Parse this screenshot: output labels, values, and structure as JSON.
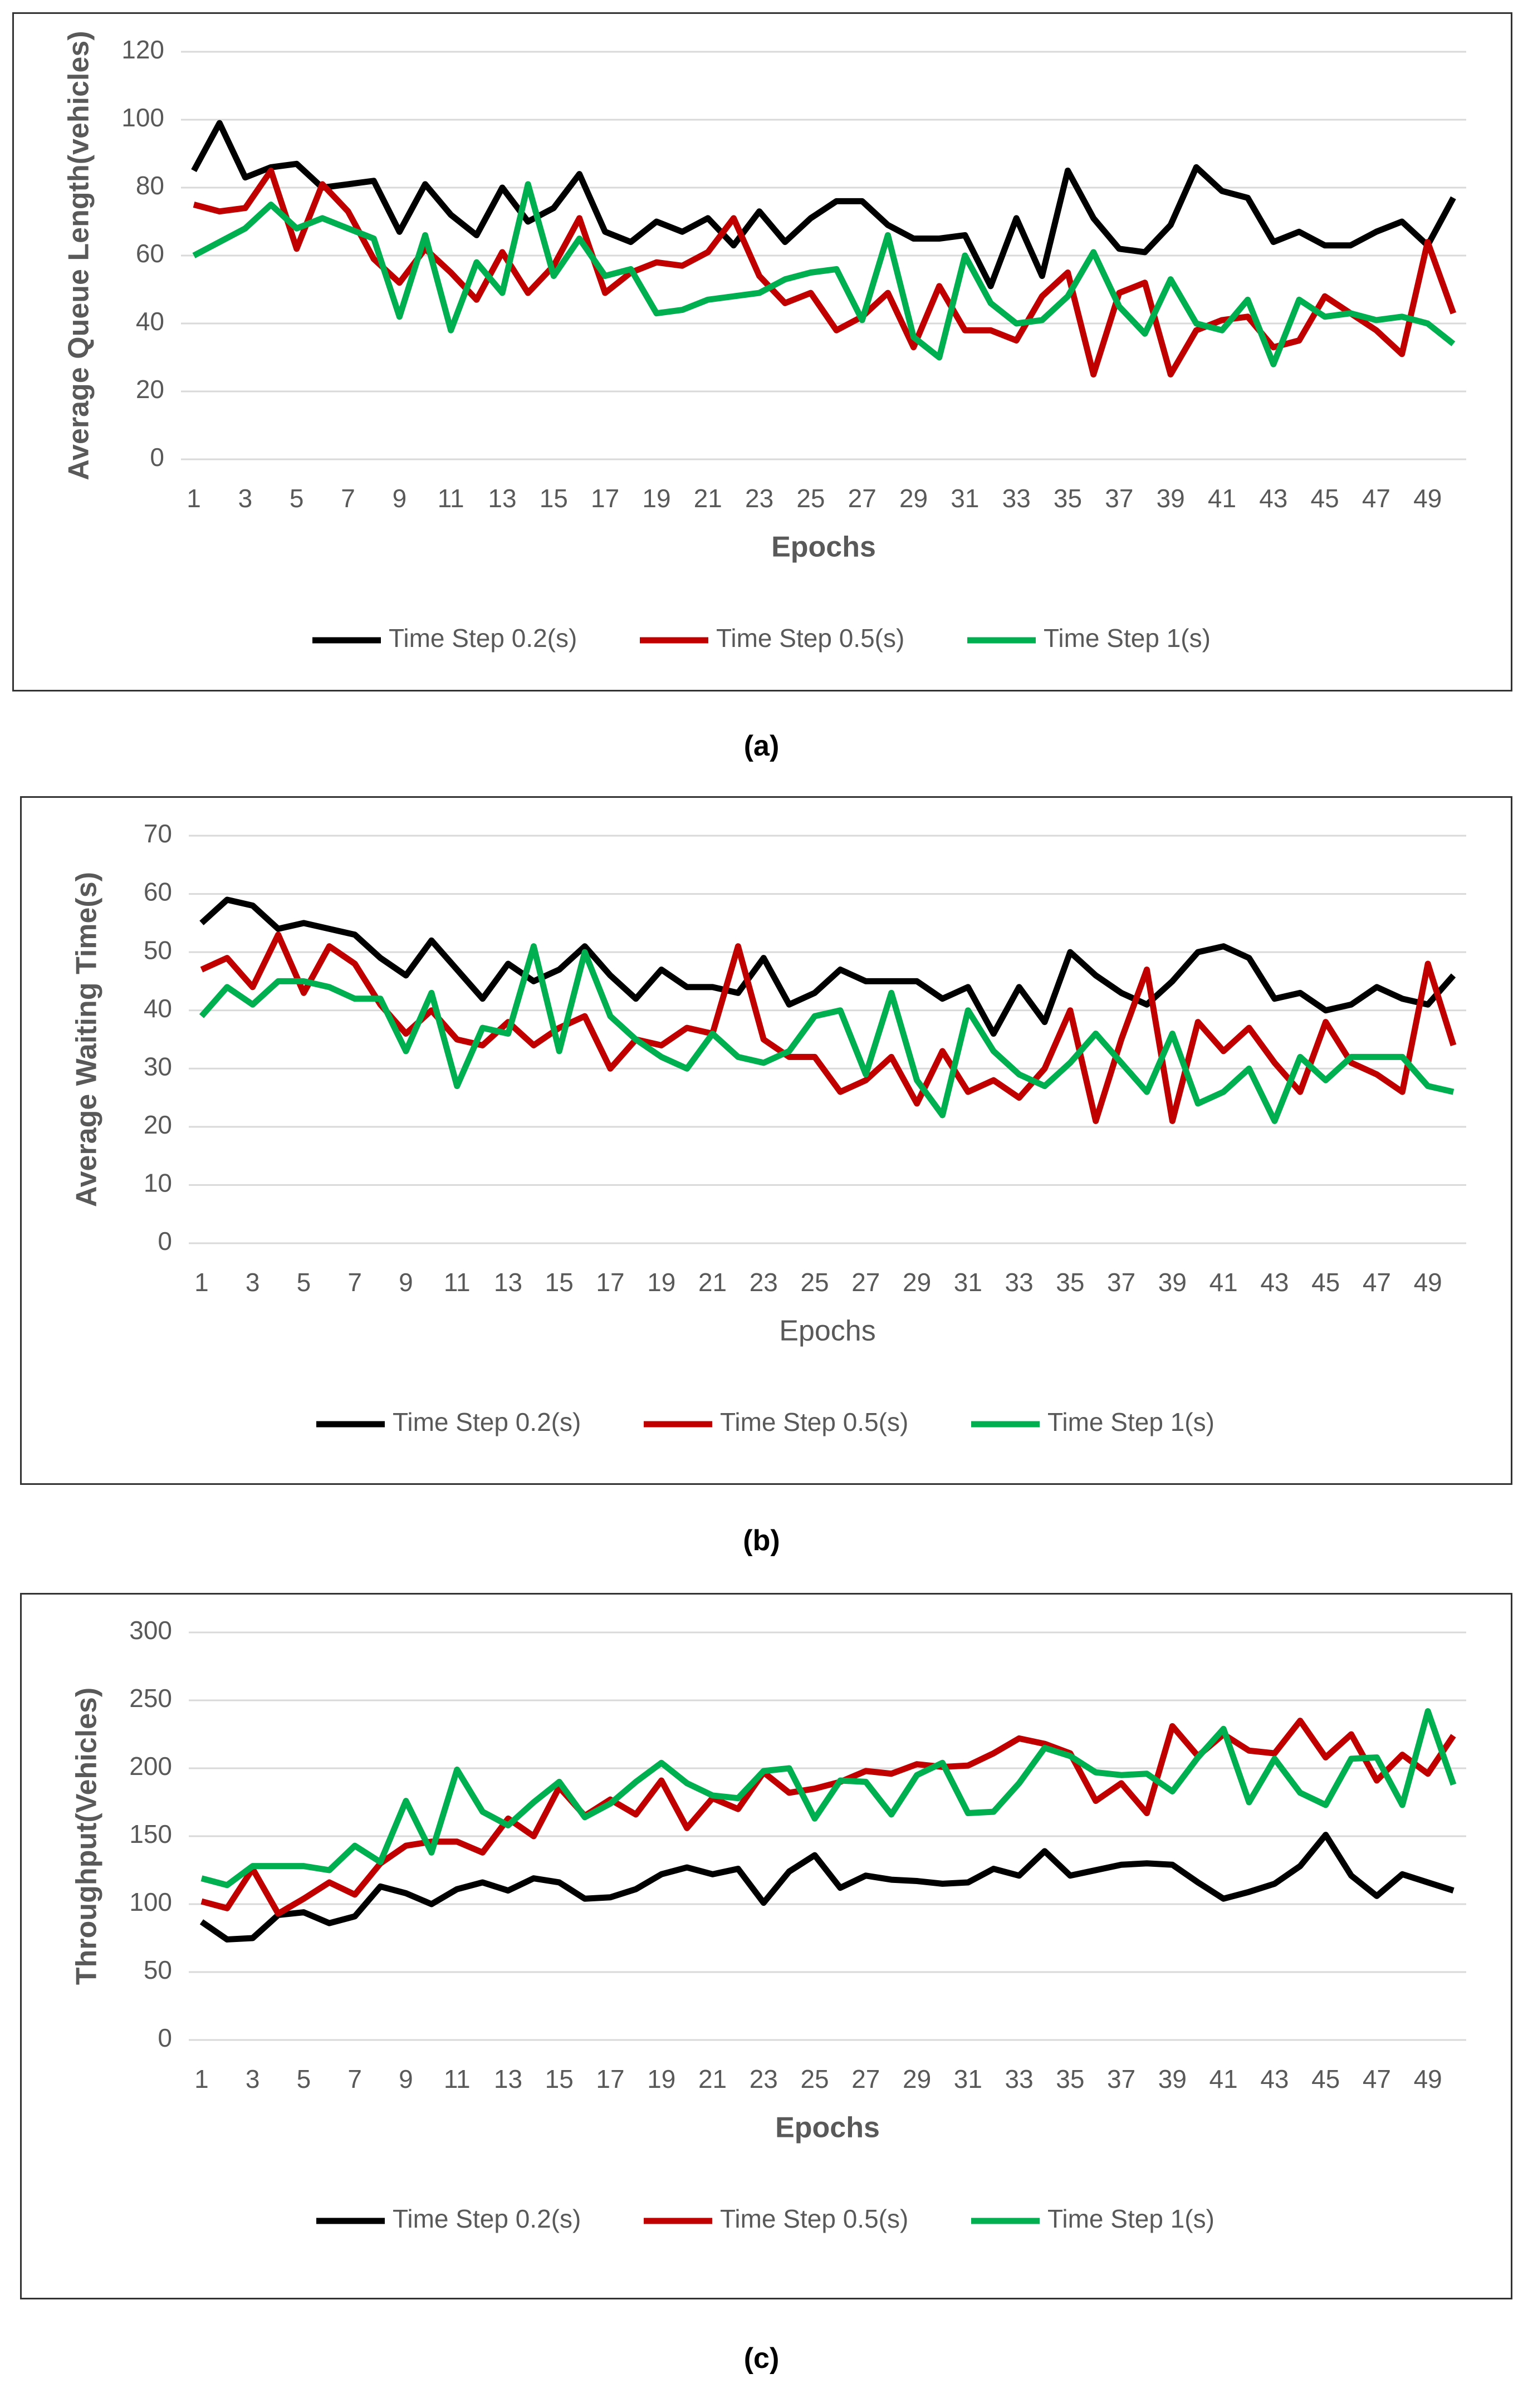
{
  "chart_data": [
    {
      "type": "line",
      "caption": "(a)",
      "x_label": "Epochs",
      "y_label": "Average Queue Length(vehicles)",
      "categories": [
        1,
        null,
        3,
        null,
        5,
        null,
        7,
        null,
        9,
        null,
        11,
        null,
        13,
        null,
        15,
        null,
        17,
        null,
        19,
        null,
        21,
        null,
        23,
        null,
        25,
        null,
        27,
        null,
        29,
        null,
        31,
        null,
        33,
        null,
        35,
        null,
        37,
        null,
        39,
        null,
        41,
        null,
        43,
        null,
        45,
        null,
        47,
        null,
        49,
        null
      ],
      "ylim": [
        0,
        120
      ],
      "yticks": [
        0,
        20,
        40,
        60,
        80,
        100,
        120
      ],
      "grid": true,
      "legend": "bottom",
      "series": [
        {
          "name": "Time Step 0.2(s)",
          "color": "#000000",
          "values": [
            85,
            99,
            83,
            86,
            87,
            80,
            81,
            82,
            67,
            81,
            72,
            66,
            80,
            70,
            74,
            84,
            67,
            64,
            70,
            67,
            71,
            63,
            73,
            64,
            71,
            76,
            76,
            69,
            65,
            65,
            66,
            51,
            71,
            54,
            85,
            71,
            62,
            61,
            69,
            86,
            79,
            77,
            64,
            67,
            63,
            63,
            67,
            70,
            63,
            77
          ]
        },
        {
          "name": "Time Step 0.5(s)",
          "color": "#c00000",
          "values": [
            75,
            73,
            74,
            85,
            62,
            81,
            73,
            59,
            52,
            62,
            55,
            47,
            61,
            49,
            57,
            71,
            49,
            55,
            58,
            57,
            61,
            71,
            54,
            46,
            49,
            38,
            42,
            49,
            33,
            51,
            38,
            38,
            35,
            48,
            55,
            25,
            49,
            52,
            25,
            38,
            41,
            42,
            33,
            35,
            48,
            43,
            38,
            31,
            64,
            43
          ]
        },
        {
          "name": "Time Step 1(s)",
          "color": "#00b050",
          "values": [
            60,
            64,
            68,
            75,
            68,
            71,
            68,
            65,
            42,
            66,
            38,
            58,
            49,
            81,
            54,
            65,
            54,
            56,
            43,
            44,
            47,
            48,
            49,
            53,
            55,
            56,
            41,
            66,
            36,
            30,
            60,
            46,
            40,
            41,
            48,
            61,
            45,
            37,
            53,
            40,
            38,
            47,
            28,
            47,
            42,
            43,
            41,
            42,
            40,
            34
          ]
        }
      ]
    },
    {
      "type": "line",
      "caption": "(b)",
      "x_label": "Epochs",
      "y_label": "Average Waiting Time(s)",
      "categories": [
        1,
        null,
        3,
        null,
        5,
        null,
        7,
        null,
        9,
        null,
        11,
        null,
        13,
        null,
        15,
        null,
        17,
        null,
        19,
        null,
        21,
        null,
        23,
        null,
        25,
        null,
        27,
        null,
        29,
        null,
        31,
        null,
        33,
        null,
        35,
        null,
        37,
        null,
        39,
        null,
        41,
        null,
        43,
        null,
        45,
        null,
        47,
        null,
        49,
        null
      ],
      "ylim": [
        0,
        70
      ],
      "yticks": [
        0,
        10,
        20,
        30,
        40,
        50,
        60,
        70
      ],
      "grid": true,
      "legend": "bottom",
      "series": [
        {
          "name": "Time Step 0.2(s)",
          "color": "#000000",
          "values": [
            55,
            59,
            58,
            54,
            55,
            54,
            53,
            49,
            46,
            52,
            47,
            42,
            48,
            45,
            47,
            51,
            46,
            42,
            47,
            44,
            44,
            43,
            49,
            41,
            43,
            47,
            45,
            45,
            45,
            42,
            44,
            36,
            44,
            38,
            50,
            46,
            43,
            41,
            45,
            50,
            51,
            49,
            42,
            43,
            40,
            41,
            44,
            42,
            41,
            46
          ]
        },
        {
          "name": "Time Step 0.5(s)",
          "color": "#c00000",
          "values": [
            47,
            49,
            44,
            53,
            43,
            51,
            48,
            41,
            36,
            40,
            35,
            34,
            38,
            34,
            37,
            39,
            30,
            35,
            34,
            37,
            36,
            51,
            35,
            32,
            32,
            26,
            28,
            32,
            24,
            33,
            26,
            28,
            25,
            30,
            40,
            21,
            35,
            47,
            21,
            38,
            33,
            37,
            31,
            26,
            38,
            31,
            29,
            26,
            48,
            34
          ]
        },
        {
          "name": "Time Step 1(s)",
          "color": "#00b050",
          "values": [
            39,
            44,
            41,
            45,
            45,
            44,
            42,
            42,
            33,
            43,
            27,
            37,
            36,
            51,
            33,
            50,
            39,
            35,
            32,
            30,
            36,
            32,
            31,
            33,
            39,
            40,
            29,
            43,
            28,
            22,
            40,
            33,
            29,
            27,
            31,
            36,
            31,
            26,
            36,
            24,
            26,
            30,
            21,
            32,
            28,
            32,
            32,
            32,
            27,
            26
          ]
        }
      ]
    },
    {
      "type": "line",
      "caption": "(c)",
      "x_label": "Epochs",
      "y_label": "Throughput(Vehicles)",
      "categories": [
        1,
        null,
        3,
        null,
        5,
        null,
        7,
        null,
        9,
        null,
        11,
        null,
        13,
        null,
        15,
        null,
        17,
        null,
        19,
        null,
        21,
        null,
        23,
        null,
        25,
        null,
        27,
        null,
        29,
        null,
        31,
        null,
        33,
        null,
        35,
        null,
        37,
        null,
        39,
        null,
        41,
        null,
        43,
        null,
        45,
        null,
        47,
        null,
        49,
        null
      ],
      "ylim": [
        0,
        300
      ],
      "yticks": [
        0,
        50,
        100,
        150,
        200,
        250,
        300
      ],
      "grid": true,
      "legend": "bottom",
      "series": [
        {
          "name": "Time Step 0.2(s)",
          "color": "#000000",
          "values": [
            87,
            74,
            75,
            92,
            94,
            86,
            91,
            113,
            108,
            100,
            111,
            116,
            110,
            119,
            116,
            104,
            105,
            111,
            122,
            127,
            122,
            126,
            101,
            124,
            136,
            112,
            121,
            118,
            117,
            115,
            116,
            126,
            121,
            139,
            121,
            125,
            129,
            130,
            129,
            116,
            104,
            109,
            115,
            128,
            151,
            121,
            106,
            122,
            116,
            110
          ]
        },
        {
          "name": "Time Step 0.5(s)",
          "color": "#c00000",
          "values": [
            102,
            97,
            126,
            93,
            104,
            116,
            107,
            130,
            143,
            146,
            146,
            138,
            163,
            150,
            186,
            165,
            177,
            166,
            191,
            156,
            178,
            170,
            197,
            182,
            185,
            190,
            198,
            196,
            203,
            201,
            202,
            211,
            222,
            218,
            211,
            176,
            189,
            167,
            231,
            209,
            225,
            213,
            211,
            235,
            208,
            225,
            191,
            210,
            196,
            224
          ]
        },
        {
          "name": "Time Step 1(s)",
          "color": "#00b050",
          "values": [
            119,
            114,
            128,
            128,
            128,
            125,
            143,
            131,
            176,
            138,
            199,
            168,
            158,
            175,
            190,
            164,
            174,
            190,
            204,
            189,
            180,
            178,
            198,
            200,
            163,
            191,
            190,
            166,
            195,
            204,
            167,
            168,
            189,
            215,
            209,
            197,
            195,
            196,
            183,
            208,
            229,
            175,
            207,
            182,
            173,
            207,
            208,
            173,
            242,
            188
          ]
        }
      ]
    }
  ]
}
